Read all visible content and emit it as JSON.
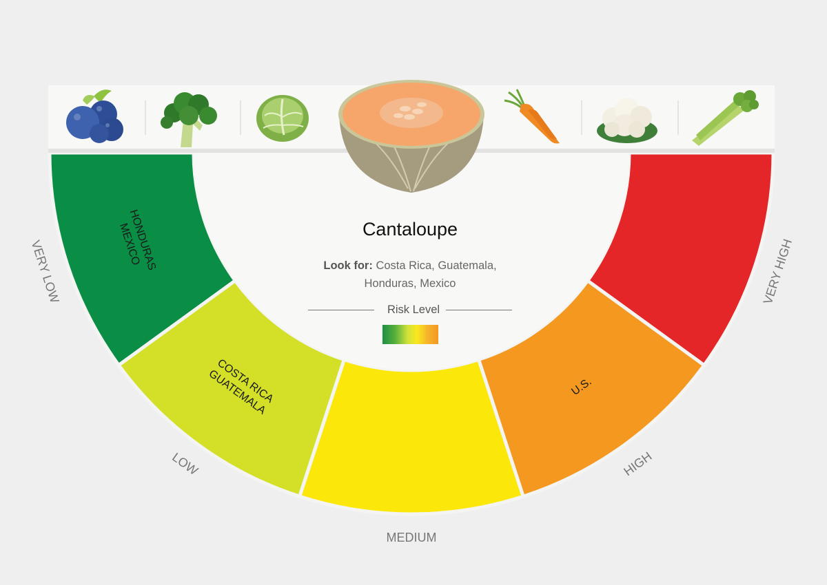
{
  "produce_items": [
    {
      "name": "blueberries-icon",
      "label": "Blueberries"
    },
    {
      "name": "broccoli-icon",
      "label": "Broccoli"
    },
    {
      "name": "cabbage-icon",
      "label": "Cabbage"
    },
    {
      "name": "cantaloupe-icon",
      "label": "Cantaloupe",
      "selected": true
    },
    {
      "name": "carrot-icon",
      "label": "Carrot"
    },
    {
      "name": "cauliflower-icon",
      "label": "Cauliflower"
    },
    {
      "name": "celery-icon",
      "label": "Celery"
    }
  ],
  "selected": {
    "title": "Cantaloupe",
    "look_for_label": "Look for:",
    "look_for_line1": "Costa Rica, Guatemala,",
    "look_for_line2": "Honduras, Mexico",
    "risk_level_label": "Risk Level"
  },
  "segments": [
    {
      "level": "VERY LOW",
      "color": "#0a8e45",
      "countries": [
        "HONDURAS",
        "MEXICO"
      ]
    },
    {
      "level": "LOW",
      "color": "#d4e028",
      "countries": [
        "COSTA RICA",
        "GUATEMALA"
      ]
    },
    {
      "level": "MEDIUM",
      "color": "#fbe80a",
      "countries": []
    },
    {
      "level": "HIGH",
      "color": "#f49820",
      "countries": [
        "U.S."
      ]
    },
    {
      "level": "VERY HIGH",
      "color": "#e52628",
      "countries": []
    }
  ],
  "colors": {
    "background": "#efefef",
    "center": "#f8f8f6",
    "level_label": "#777777",
    "gap": "#f4f4f2"
  }
}
